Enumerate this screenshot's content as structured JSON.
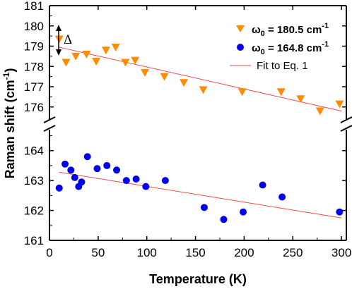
{
  "chart_data": {
    "type": "scatter",
    "xlabel": "Temperature (K)",
    "ylabel": "Raman shift (cm",
    "ylabel_sup": "-1",
    "ylabel_close": ")",
    "xlim": [
      0,
      305
    ],
    "x_ticks": [
      "0",
      "50",
      "100",
      "150",
      "200",
      "250",
      "300"
    ],
    "broken_y_axis": true,
    "upper_panel": {
      "ylim": [
        175.4,
        181
      ],
      "y_ticks": [
        "176",
        "177",
        "178",
        "179",
        "180",
        "181"
      ]
    },
    "lower_panel": {
      "ylim": [
        161,
        164.7
      ],
      "y_ticks": [
        "161",
        "162",
        "163",
        "164"
      ]
    },
    "annotation": "Δ",
    "legend_placement": "top-right",
    "series": [
      {
        "name_main": "ω",
        "name_sub": "0",
        "name_value": " = 180.5 cm",
        "name_sup": "-1",
        "marker": "triangle-down",
        "color": "#FF8C00",
        "panel": "upper",
        "x": [
          10,
          17,
          27,
          38,
          48,
          58,
          68,
          78,
          88,
          98,
          118,
          138,
          158,
          198,
          238,
          258,
          278,
          298
        ],
        "y": [
          179.35,
          178.2,
          178.5,
          178.6,
          178.25,
          178.8,
          178.95,
          178.2,
          178.3,
          177.7,
          177.5,
          177.2,
          176.85,
          176.75,
          176.75,
          176.4,
          175.8,
          176.15
        ]
      },
      {
        "name_main": "ω",
        "name_sub": "0",
        "name_value": " = 164.8 cm",
        "name_sup": "-1",
        "marker": "circle",
        "color": "#0000EE",
        "panel": "lower",
        "x": [
          10,
          16,
          22,
          26,
          30,
          33,
          39,
          49,
          59,
          69,
          79,
          89,
          99,
          119,
          159,
          179,
          199,
          219,
          239,
          298
        ],
        "y": [
          162.75,
          163.55,
          163.35,
          163.1,
          162.8,
          162.95,
          163.8,
          163.4,
          163.5,
          163.35,
          163.0,
          163.05,
          162.8,
          163.0,
          162.1,
          161.7,
          161.95,
          162.85,
          162.45,
          161.95
        ]
      },
      {
        "name": "Fit to Eq. 1",
        "marker": "line",
        "color": "#E84A4A",
        "fits": [
          {
            "panel": "upper",
            "x": [
              10,
              300
            ],
            "y": [
              178.95,
              175.8
            ]
          },
          {
            "panel": "lower",
            "x": [
              10,
              300
            ],
            "y": [
              163.28,
              161.75
            ]
          }
        ]
      }
    ]
  }
}
